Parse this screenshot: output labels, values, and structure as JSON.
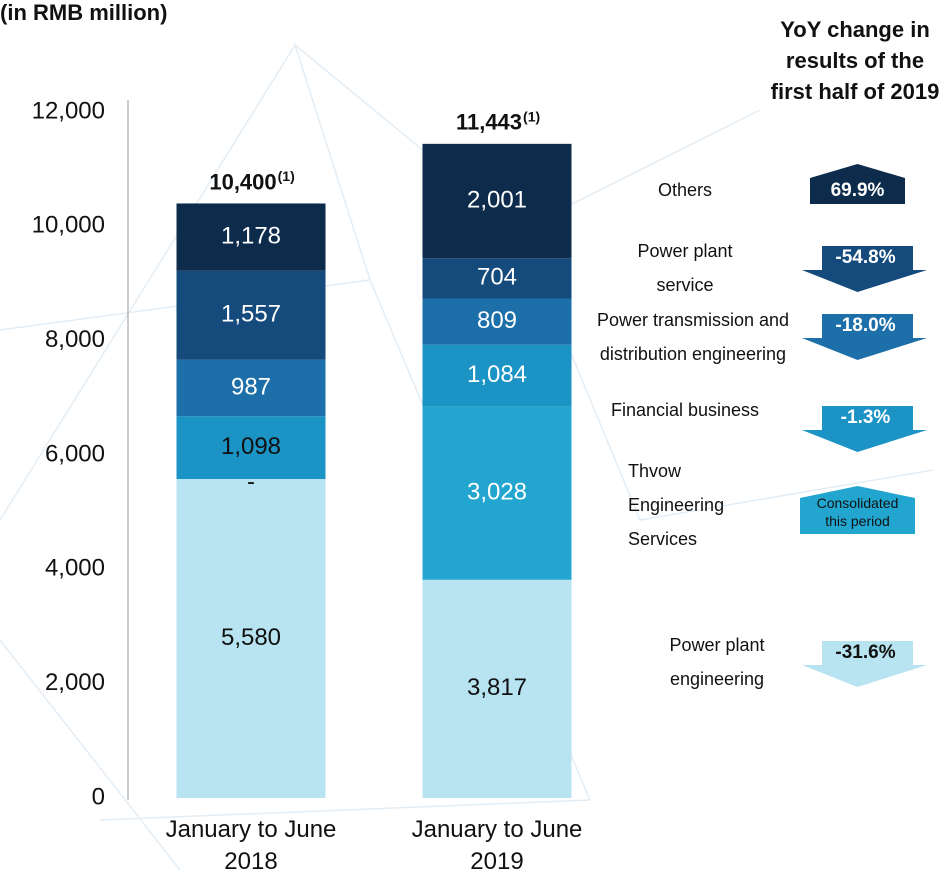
{
  "chart_data": {
    "type": "stacked_bar",
    "title": "(in RMB million)",
    "categories": [
      "January to June 2018",
      "January to June 2019"
    ],
    "ylim": [
      0,
      12000
    ],
    "yticks": [
      0,
      {
        "value": 2000,
        "label": "2,000"
      },
      {
        "value": 4000,
        "label": "4,000"
      },
      {
        "value": 6000,
        "label": "6,000"
      },
      {
        "value": 8000,
        "label": "8,000"
      },
      {
        "value": 10000,
        "label": "10,000"
      },
      {
        "value": 12000,
        "label": "12,000"
      }
    ],
    "series": [
      {
        "name": "Power plant engineering",
        "color": "#b8e4f2",
        "values": [
          5580,
          3817
        ],
        "value_labels": [
          "5,580",
          "3,817"
        ],
        "yoy": -31.6,
        "yoy_label": "-31.6%"
      },
      {
        "name": "Thvow Engineering Services",
        "color": "#22a6d0",
        "values": [
          0,
          3028
        ],
        "value_labels": [
          "-",
          "3,028"
        ],
        "yoy_label": "Consolidated this period"
      },
      {
        "name": "Financial business",
        "color": "#1b93c5",
        "values": [
          1098,
          1084
        ],
        "value_labels": [
          "1,098",
          "1,084"
        ],
        "yoy": -1.3,
        "yoy_label": "-1.3%"
      },
      {
        "name": "Power transmission and distribution engineering",
        "color": "#1c6fa8",
        "values": [
          987,
          809
        ],
        "value_labels": [
          "987",
          "809"
        ],
        "yoy": -18.0,
        "yoy_label": "-18.0%"
      },
      {
        "name": "Power plant service",
        "color": "#154a7c",
        "values": [
          1557,
          704
        ],
        "value_labels": [
          "1,557",
          "704"
        ],
        "yoy": -54.8,
        "yoy_label": "-54.8%"
      },
      {
        "name": "Others",
        "color": "#0d2b4b",
        "values": [
          1178,
          2001
        ],
        "value_labels": [
          "1,178",
          "2,001"
        ],
        "yoy": 69.9,
        "yoy_label": "69.9%"
      }
    ],
    "totals": [
      10400,
      11443
    ],
    "total_labels": [
      "10,400",
      "11,443"
    ],
    "total_note": "(1)",
    "yoy_title": "YoY change in results of the first half of 2019"
  }
}
